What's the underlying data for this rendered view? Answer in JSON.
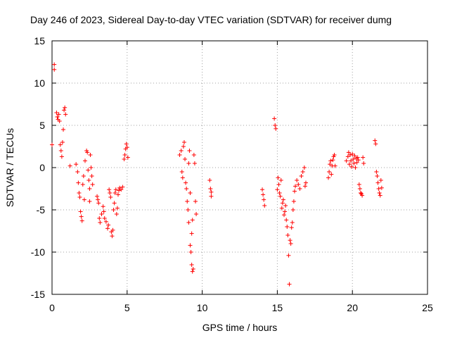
{
  "chart_data": {
    "type": "scatter",
    "title": "Day 246 of 2023, Sidereal Day-to-day VTEC variation (SDTVAR) for receiver dumg",
    "xlabel": "GPS time / hours",
    "ylabel": "SDTVAR / TECUs",
    "xlim": [
      0,
      25
    ],
    "ylim": [
      -15,
      15
    ],
    "x_ticks": [
      0,
      5,
      10,
      15,
      20,
      25
    ],
    "x_tick_labels": [
      "0",
      "5",
      "10",
      "15",
      "20",
      "25"
    ],
    "y_ticks": [
      -15,
      -10,
      -5,
      0,
      5,
      10,
      15
    ],
    "y_tick_labels": [
      "-15",
      "-10",
      "-5",
      "0",
      "5",
      "10",
      "15"
    ],
    "grid": true,
    "marker": "+",
    "series": [
      {
        "name": "SDTVAR",
        "color": "#ff0000",
        "points": [
          [
            0.0,
            2.7
          ],
          [
            0.15,
            12.2
          ],
          [
            0.15,
            11.6
          ],
          [
            0.3,
            6.5
          ],
          [
            0.35,
            6.0
          ],
          [
            0.4,
            5.7
          ],
          [
            0.45,
            6.3
          ],
          [
            0.5,
            5.5
          ],
          [
            0.55,
            2.7
          ],
          [
            0.6,
            2.0
          ],
          [
            0.65,
            1.3
          ],
          [
            0.7,
            3.0
          ],
          [
            0.75,
            4.5
          ],
          [
            0.8,
            6.8
          ],
          [
            0.85,
            7.1
          ],
          [
            0.9,
            6.3
          ],
          [
            1.2,
            0.2
          ],
          [
            1.6,
            0.4
          ],
          [
            1.7,
            -0.5
          ],
          [
            1.75,
            -1.8
          ],
          [
            1.8,
            -3.0
          ],
          [
            1.85,
            -3.5
          ],
          [
            1.9,
            -5.2
          ],
          [
            1.95,
            -5.8
          ],
          [
            2.0,
            -6.3
          ],
          [
            2.05,
            -2.0
          ],
          [
            2.1,
            -1.0
          ],
          [
            2.15,
            -3.8
          ],
          [
            2.2,
            0.8
          ],
          [
            2.3,
            2.0
          ],
          [
            2.35,
            1.8
          ],
          [
            2.4,
            -0.3
          ],
          [
            2.45,
            -1.5
          ],
          [
            2.5,
            -2.5
          ],
          [
            2.55,
            1.5
          ],
          [
            2.6,
            0.0
          ],
          [
            2.65,
            -1.0
          ],
          [
            2.7,
            -2.0
          ],
          [
            2.5,
            -4.0
          ],
          [
            3.0,
            -3.4
          ],
          [
            3.05,
            -3.8
          ],
          [
            3.1,
            -4.2
          ],
          [
            3.15,
            -6.0
          ],
          [
            3.2,
            -6.5
          ],
          [
            3.3,
            -5.5
          ],
          [
            3.4,
            -4.6
          ],
          [
            3.45,
            -5.2
          ],
          [
            3.5,
            -6.0
          ],
          [
            3.6,
            -6.4
          ],
          [
            3.7,
            -7.2
          ],
          [
            3.75,
            -6.8
          ],
          [
            3.8,
            -2.6
          ],
          [
            3.85,
            -3.0
          ],
          [
            3.9,
            -3.5
          ],
          [
            3.95,
            -7.6
          ],
          [
            4.0,
            -8.1
          ],
          [
            4.05,
            -7.4
          ],
          [
            4.1,
            -5.0
          ],
          [
            4.15,
            -4.2
          ],
          [
            4.2,
            -3.0
          ],
          [
            4.25,
            -2.6
          ],
          [
            4.3,
            -5.5
          ],
          [
            4.35,
            -4.8
          ],
          [
            4.4,
            -3.2
          ],
          [
            4.45,
            -2.7
          ],
          [
            4.5,
            -2.4
          ],
          [
            4.6,
            -2.6
          ],
          [
            4.7,
            -2.3
          ],
          [
            4.8,
            1.0
          ],
          [
            4.85,
            1.5
          ],
          [
            4.9,
            2.2
          ],
          [
            4.95,
            2.8
          ],
          [
            5.0,
            2.4
          ],
          [
            5.05,
            1.2
          ],
          [
            8.5,
            1.5
          ],
          [
            8.6,
            2.0
          ],
          [
            8.65,
            -0.5
          ],
          [
            8.7,
            -1.2
          ],
          [
            8.75,
            2.5
          ],
          [
            8.8,
            3.0
          ],
          [
            8.85,
            1.0
          ],
          [
            8.9,
            -1.8
          ],
          [
            8.95,
            -2.5
          ],
          [
            9.0,
            -4.0
          ],
          [
            9.05,
            -5.0
          ],
          [
            9.1,
            -6.5
          ],
          [
            9.15,
            2.0
          ],
          [
            9.2,
            -9.2
          ],
          [
            9.25,
            -10.0
          ],
          [
            9.3,
            -11.5
          ],
          [
            9.35,
            -12.3
          ],
          [
            9.4,
            -12.0
          ],
          [
            9.45,
            1.5
          ],
          [
            9.5,
            0.5
          ],
          [
            9.55,
            -4.0
          ],
          [
            9.6,
            -5.5
          ],
          [
            9.3,
            -7.8
          ],
          [
            9.35,
            -6.2
          ],
          [
            9.2,
            -3.0
          ],
          [
            9.1,
            0.5
          ],
          [
            10.5,
            -1.5
          ],
          [
            10.55,
            -2.5
          ],
          [
            10.6,
            -3.4
          ],
          [
            10.6,
            -2.9
          ],
          [
            14.0,
            -2.6
          ],
          [
            14.05,
            -3.2
          ],
          [
            14.1,
            -3.8
          ],
          [
            14.15,
            -4.5
          ],
          [
            14.8,
            5.8
          ],
          [
            14.85,
            5.0
          ],
          [
            14.9,
            4.6
          ],
          [
            15.0,
            -2.6
          ],
          [
            15.05,
            -1.2
          ],
          [
            15.1,
            -2.0
          ],
          [
            15.15,
            -3.0
          ],
          [
            15.2,
            -3.4
          ],
          [
            15.25,
            -1.5
          ],
          [
            15.3,
            -4.8
          ],
          [
            15.35,
            -4.2
          ],
          [
            15.4,
            -3.8
          ],
          [
            15.45,
            -5.6
          ],
          [
            15.5,
            -5.2
          ],
          [
            15.55,
            -4.5
          ],
          [
            15.6,
            -6.2
          ],
          [
            15.65,
            -7.0
          ],
          [
            15.7,
            -8.0
          ],
          [
            15.75,
            -10.4
          ],
          [
            15.8,
            -13.8
          ],
          [
            15.85,
            -8.6
          ],
          [
            15.9,
            -9.0
          ],
          [
            15.95,
            -7.1
          ],
          [
            16.0,
            -6.5
          ],
          [
            16.05,
            -5.0
          ],
          [
            16.1,
            -4.0
          ],
          [
            16.15,
            -2.8
          ],
          [
            16.2,
            -2.2
          ],
          [
            16.3,
            -1.5
          ],
          [
            16.4,
            -2.0
          ],
          [
            16.5,
            -2.5
          ],
          [
            16.6,
            -1.0
          ],
          [
            16.7,
            -0.5
          ],
          [
            16.8,
            0.0
          ],
          [
            16.85,
            -2.2
          ],
          [
            16.9,
            -1.8
          ],
          [
            18.4,
            -1.2
          ],
          [
            18.45,
            -0.5
          ],
          [
            18.5,
            0.4
          ],
          [
            18.55,
            0.8
          ],
          [
            18.6,
            -0.8
          ],
          [
            18.65,
            0.2
          ],
          [
            18.7,
            0.9
          ],
          [
            18.75,
            1.3
          ],
          [
            18.8,
            1.5
          ],
          [
            18.85,
            0.2
          ],
          [
            19.6,
            0.8
          ],
          [
            19.7,
            1.3
          ],
          [
            19.75,
            1.8
          ],
          [
            19.8,
            0.4
          ],
          [
            19.85,
            1.5
          ],
          [
            19.9,
            0.8
          ],
          [
            19.95,
            0.1
          ],
          [
            20.0,
            1.6
          ],
          [
            20.05,
            1.0
          ],
          [
            20.1,
            0.5
          ],
          [
            20.15,
            1.4
          ],
          [
            20.2,
            0.0
          ],
          [
            20.25,
            1.1
          ],
          [
            20.3,
            0.6
          ],
          [
            20.35,
            1.2
          ],
          [
            20.4,
            0.9
          ],
          [
            20.45,
            -2.0
          ],
          [
            20.5,
            -2.5
          ],
          [
            20.55,
            -3.0
          ],
          [
            20.6,
            -3.1
          ],
          [
            20.65,
            -3.3
          ],
          [
            20.7,
            1.2
          ],
          [
            20.75,
            0.5
          ],
          [
            21.5,
            3.2
          ],
          [
            21.55,
            2.8
          ],
          [
            21.6,
            -0.5
          ],
          [
            21.65,
            -1.0
          ],
          [
            21.7,
            -1.8
          ],
          [
            21.75,
            -2.5
          ],
          [
            21.8,
            -3.0
          ],
          [
            21.85,
            -3.3
          ],
          [
            21.9,
            -1.5
          ],
          [
            21.95,
            -2.4
          ]
        ]
      }
    ]
  }
}
